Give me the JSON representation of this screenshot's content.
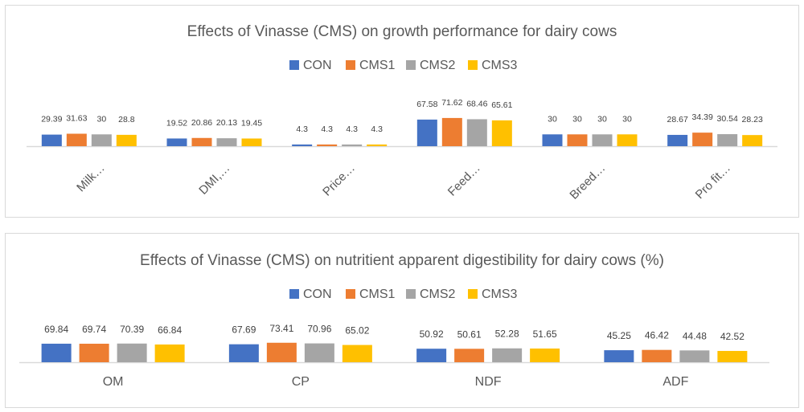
{
  "chart_data": [
    {
      "type": "bar",
      "title": "Effects of Vinasse (CMS) on growth performance for dairy cows",
      "categories": [
        "Milk…",
        "DMI,…",
        "Price…",
        "Feed…",
        "Breed…",
        "Pro fit…"
      ],
      "series": [
        {
          "name": "CON",
          "color": "#4472C4",
          "values": [
            29.39,
            19.52,
            4.3,
            67.58,
            30,
            28.67
          ]
        },
        {
          "name": "CMS1",
          "color": "#ED7D31",
          "values": [
            31.63,
            20.86,
            4.3,
            71.62,
            30,
            34.39
          ]
        },
        {
          "name": "CMS2",
          "color": "#A5A5A5",
          "values": [
            30,
            20.13,
            4.3,
            68.46,
            30,
            30.54
          ]
        },
        {
          "name": "CMS3",
          "color": "#FFC000",
          "values": [
            28.8,
            19.45,
            4.3,
            65.61,
            30,
            28.23
          ]
        }
      ],
      "legend": "top",
      "grid": false,
      "data_labels": true,
      "xlabel_rotation": -45
    },
    {
      "type": "bar",
      "title": "Effects of Vinasse (CMS) on nutritient apparent digestibility for dairy cows (%)",
      "categories": [
        "OM",
        "CP",
        "NDF",
        "ADF"
      ],
      "series": [
        {
          "name": "CON",
          "color": "#4472C4",
          "values": [
            69.84,
            67.69,
            50.92,
            45.25
          ]
        },
        {
          "name": "CMS1",
          "color": "#ED7D31",
          "values": [
            69.74,
            73.41,
            50.61,
            46.42
          ]
        },
        {
          "name": "CMS2",
          "color": "#A5A5A5",
          "values": [
            70.39,
            70.96,
            52.28,
            44.48
          ]
        },
        {
          "name": "CMS3",
          "color": "#FFC000",
          "values": [
            66.84,
            65.02,
            51.65,
            42.52
          ]
        }
      ],
      "legend": "top",
      "grid": false,
      "data_labels": true
    }
  ]
}
